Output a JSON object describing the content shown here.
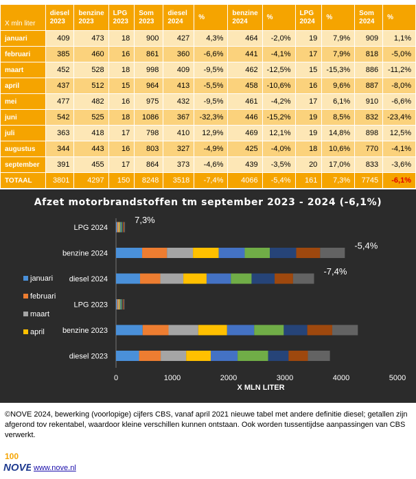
{
  "table": {
    "corner_label": "X mln liter",
    "headers": [
      [
        "diesel",
        "2023"
      ],
      [
        "benzine",
        "2023"
      ],
      [
        "LPG",
        "2023"
      ],
      [
        "Som",
        "2023"
      ],
      [
        "diesel",
        "2024"
      ],
      [
        "%",
        ""
      ],
      [
        "benzine",
        "2024"
      ],
      [
        "%",
        ""
      ],
      [
        "LPG",
        "2024"
      ],
      [
        "%",
        ""
      ],
      [
        "Som",
        "2024"
      ],
      [
        "%",
        ""
      ]
    ],
    "rows": [
      {
        "month": "januari",
        "cells": [
          "409",
          "473",
          "18",
          "900",
          "427",
          "4,3%",
          "464",
          "-2,0%",
          "19",
          "7,9%",
          "909",
          "1,1%"
        ]
      },
      {
        "month": "februari",
        "cells": [
          "385",
          "460",
          "16",
          "861",
          "360",
          "-6,6%",
          "441",
          "-4,1%",
          "17",
          "7,9%",
          "818",
          "-5,0%"
        ]
      },
      {
        "month": "maart",
        "cells": [
          "452",
          "528",
          "18",
          "998",
          "409",
          "-9,5%",
          "462",
          "-12,5%",
          "15",
          "-15,3%",
          "886",
          "-11,2%"
        ]
      },
      {
        "month": "april",
        "cells": [
          "437",
          "512",
          "15",
          "964",
          "413",
          "-5,5%",
          "458",
          "-10,6%",
          "16",
          "9,6%",
          "887",
          "-8,0%"
        ]
      },
      {
        "month": "mei",
        "cells": [
          "477",
          "482",
          "16",
          "975",
          "432",
          "-9,5%",
          "461",
          "-4,2%",
          "17",
          "6,1%",
          "910",
          "-6,6%"
        ]
      },
      {
        "month": "juni",
        "cells": [
          "542",
          "525",
          "18",
          "1086",
          "367",
          "-32,3%",
          "446",
          "-15,2%",
          "19",
          "8,5%",
          "832",
          "-23,4%"
        ]
      },
      {
        "month": "juli",
        "cells": [
          "363",
          "418",
          "17",
          "798",
          "410",
          "12,9%",
          "469",
          "12,1%",
          "19",
          "14,8%",
          "898",
          "12,5%"
        ]
      },
      {
        "month": "augustus",
        "cells": [
          "344",
          "443",
          "16",
          "803",
          "327",
          "-4,9%",
          "425",
          "-4,0%",
          "18",
          "10,6%",
          "770",
          "-4,1%"
        ]
      },
      {
        "month": "september",
        "cells": [
          "391",
          "455",
          "17",
          "864",
          "373",
          "-4,6%",
          "439",
          "-3,5%",
          "20",
          "17,0%",
          "833",
          "-3,6%"
        ]
      }
    ],
    "total": {
      "month": "TOTAAL",
      "cells": [
        "3801",
        "4297",
        "150",
        "8248",
        "3518",
        "-7,4%",
        "4066",
        "-5,4%",
        "161",
        "7,3%",
        "7745",
        "-6,1%"
      ]
    }
  },
  "chart_data": {
    "type": "bar",
    "orientation": "horizontal",
    "stacked": true,
    "title": "Afzet motorbrandstoffen tm september 2023 - 2024 (-6,1%)",
    "xlabel": "X MLN LITER",
    "xlim": [
      0,
      5000
    ],
    "xticks": [
      "0",
      "1000",
      "2000",
      "3000",
      "4000",
      "5000"
    ],
    "grid": false,
    "categories": [
      "LPG 2024",
      "benzine 2024",
      "diesel 2024",
      "LPG 2023",
      "benzine 2023",
      "diesel 2023"
    ],
    "end_labels": [
      "7,3%",
      "-5,4%",
      "-7,4%",
      "",
      "",
      ""
    ],
    "series": [
      {
        "name": "januari",
        "color": "#4a90d9",
        "values": [
          19,
          464,
          427,
          18,
          473,
          409
        ]
      },
      {
        "name": "februari",
        "color": "#ed7d31",
        "values": [
          17,
          441,
          360,
          16,
          460,
          385
        ]
      },
      {
        "name": "maart",
        "color": "#a5a5a5",
        "values": [
          15,
          462,
          409,
          18,
          528,
          452
        ]
      },
      {
        "name": "april",
        "color": "#ffc000",
        "values": [
          16,
          458,
          413,
          15,
          512,
          437
        ]
      },
      {
        "values": [
          17,
          461,
          432,
          16,
          482,
          477
        ],
        "color": "#4472c4"
      },
      {
        "values": [
          19,
          446,
          367,
          18,
          525,
          542
        ],
        "color": "#70ad47"
      },
      {
        "values": [
          19,
          469,
          410,
          17,
          418,
          363
        ],
        "color": "#264478"
      },
      {
        "values": [
          18,
          425,
          327,
          16,
          443,
          344
        ],
        "color": "#9e480e"
      },
      {
        "values": [
          20,
          439,
          373,
          17,
          455,
          391
        ],
        "color": "#636363"
      }
    ],
    "legend": [
      "januari",
      "februari",
      "maart",
      "april"
    ],
    "legend_position": "left",
    "background": "#2b2b2b"
  },
  "footer": {
    "note": "©NOVE 2024, bewerking (voorlopige) cijfers CBS, vanaf april 2021 nieuwe tabel met andere definitie diesel; getallen zijn afgerond tov rekentabel, waardoor kleine verschillen kunnen ontstaan. Ook worden tussentijdse aanpassingen van CBS verwerkt.",
    "logo_text": "NOVE",
    "logo_number": "100",
    "website": "www.nove.nl"
  }
}
